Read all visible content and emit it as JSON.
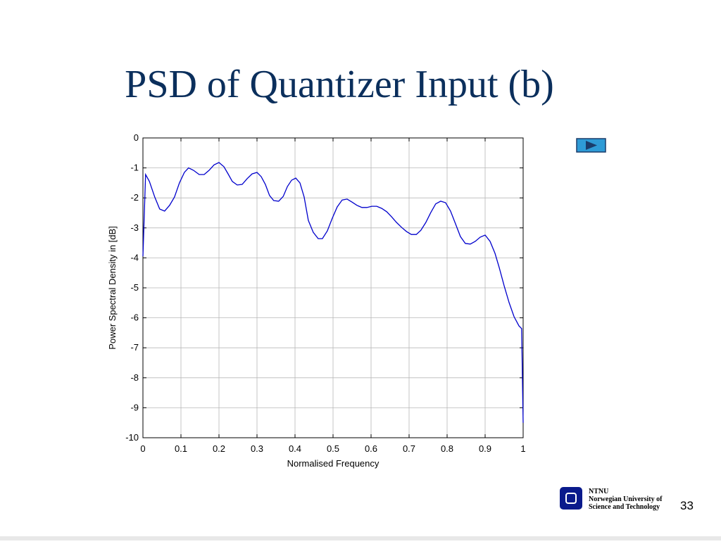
{
  "chart_data": {
    "type": "line",
    "title": "PSD of Quantizer Input (b)",
    "xlabel": "Normalised Frequency",
    "ylabel": "Power Spectral Density in [dB]",
    "xlim": [
      0,
      1
    ],
    "ylim": [
      -10,
      0
    ],
    "xticks": [
      0,
      0.1,
      0.2,
      0.3,
      0.4,
      0.5,
      0.6,
      0.7,
      0.8,
      0.9,
      1
    ],
    "yticks": [
      0,
      -1,
      -2,
      -3,
      -4,
      -5,
      -6,
      -7,
      -8,
      -9,
      -10
    ],
    "grid": true,
    "series": [
      {
        "color": "#0000cc",
        "x": [
          0,
          0.007,
          0.017,
          0.031,
          0.044,
          0.057,
          0.07,
          0.083,
          0.096,
          0.109,
          0.12,
          0.133,
          0.148,
          0.161,
          0.174,
          0.187,
          0.2,
          0.213,
          0.224,
          0.235,
          0.248,
          0.261,
          0.274,
          0.287,
          0.3,
          0.311,
          0.322,
          0.333,
          0.344,
          0.357,
          0.369,
          0.38,
          0.391,
          0.402,
          0.413,
          0.424,
          0.435,
          0.448,
          0.461,
          0.472,
          0.485,
          0.498,
          0.511,
          0.524,
          0.537,
          0.55,
          0.563,
          0.576,
          0.589,
          0.602,
          0.615,
          0.628,
          0.641,
          0.654,
          0.667,
          0.68,
          0.693,
          0.706,
          0.719,
          0.731,
          0.744,
          0.757,
          0.77,
          0.783,
          0.796,
          0.809,
          0.822,
          0.835,
          0.848,
          0.861,
          0.874,
          0.887,
          0.9,
          0.913,
          0.926,
          0.937,
          0.95,
          0.963,
          0.976,
          0.989,
          0.996,
          1
        ],
        "values": [
          -3.95,
          -1.22,
          -1.45,
          -1.97,
          -2.37,
          -2.44,
          -2.25,
          -1.97,
          -1.5,
          -1.15,
          -1.0,
          -1.08,
          -1.22,
          -1.22,
          -1.08,
          -0.9,
          -0.82,
          -0.96,
          -1.2,
          -1.45,
          -1.57,
          -1.55,
          -1.36,
          -1.2,
          -1.15,
          -1.29,
          -1.55,
          -1.92,
          -2.09,
          -2.11,
          -1.95,
          -1.62,
          -1.41,
          -1.34,
          -1.5,
          -1.97,
          -2.75,
          -3.15,
          -3.36,
          -3.36,
          -3.1,
          -2.68,
          -2.3,
          -2.07,
          -2.04,
          -2.14,
          -2.25,
          -2.32,
          -2.32,
          -2.28,
          -2.28,
          -2.35,
          -2.46,
          -2.63,
          -2.82,
          -2.98,
          -3.12,
          -3.22,
          -3.22,
          -3.08,
          -2.82,
          -2.49,
          -2.2,
          -2.11,
          -2.16,
          -2.44,
          -2.86,
          -3.29,
          -3.52,
          -3.54,
          -3.45,
          -3.31,
          -3.24,
          -3.45,
          -3.85,
          -4.32,
          -4.93,
          -5.49,
          -5.96,
          -6.27,
          -6.36,
          -9.5
        ]
      }
    ]
  },
  "footer": {
    "logo_name": "NTNU",
    "logo_line1": "Norwegian University of",
    "logo_line2": "Science and Technology",
    "page_number": "33"
  }
}
